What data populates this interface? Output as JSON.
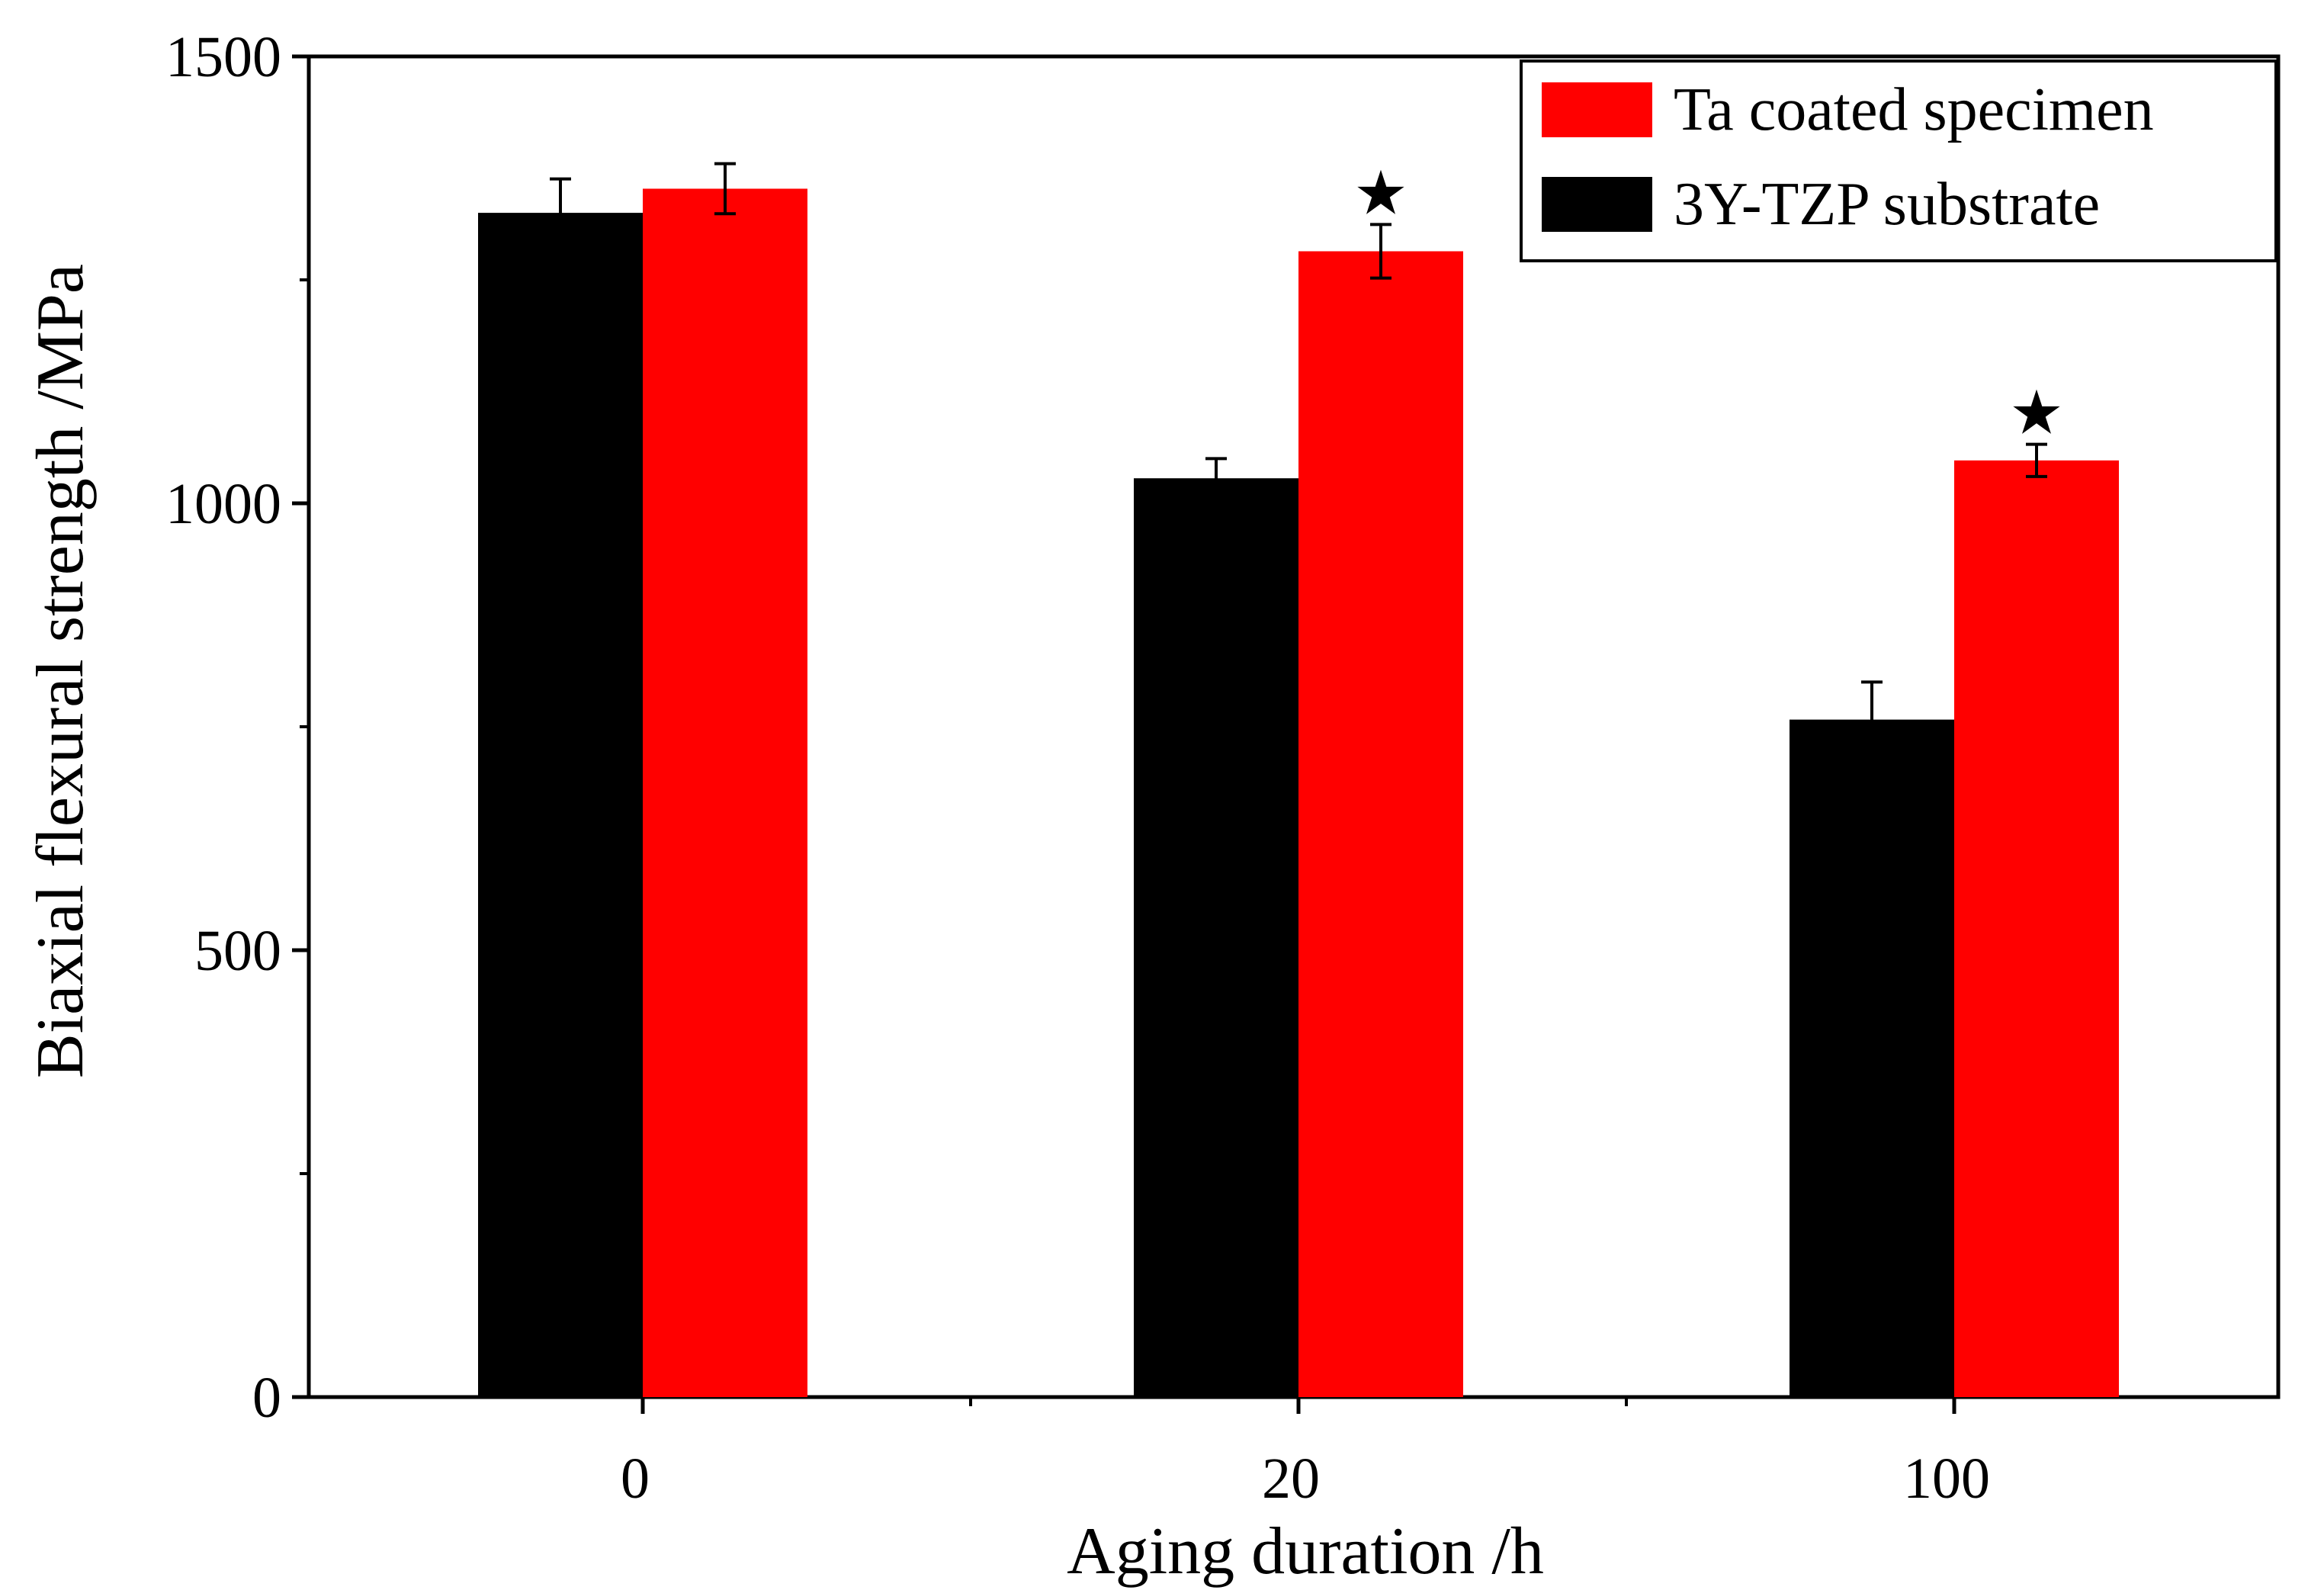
{
  "chart_data": {
    "type": "bar",
    "title": "",
    "xlabel": "Aging duration /h",
    "ylabel": "Biaxial flexural strength  /MPa",
    "ylim": [
      0,
      1500
    ],
    "yticks": [
      0,
      500,
      1000,
      1500
    ],
    "categories": [
      "0",
      "20",
      "100"
    ],
    "series": [
      {
        "name": "3Y-TZP substrate",
        "color": "#000000",
        "values": [
          1325,
          1028,
          758
        ],
        "errors": [
          38,
          22,
          42
        ]
      },
      {
        "name": "Ta coated specimen",
        "color": "#ff0000",
        "values": [
          1352,
          1282,
          1048
        ],
        "errors": [
          28,
          30,
          18
        ]
      }
    ],
    "significance_marker": "★",
    "significance_categories": [
      1,
      2
    ],
    "legend_position": "top-right"
  }
}
